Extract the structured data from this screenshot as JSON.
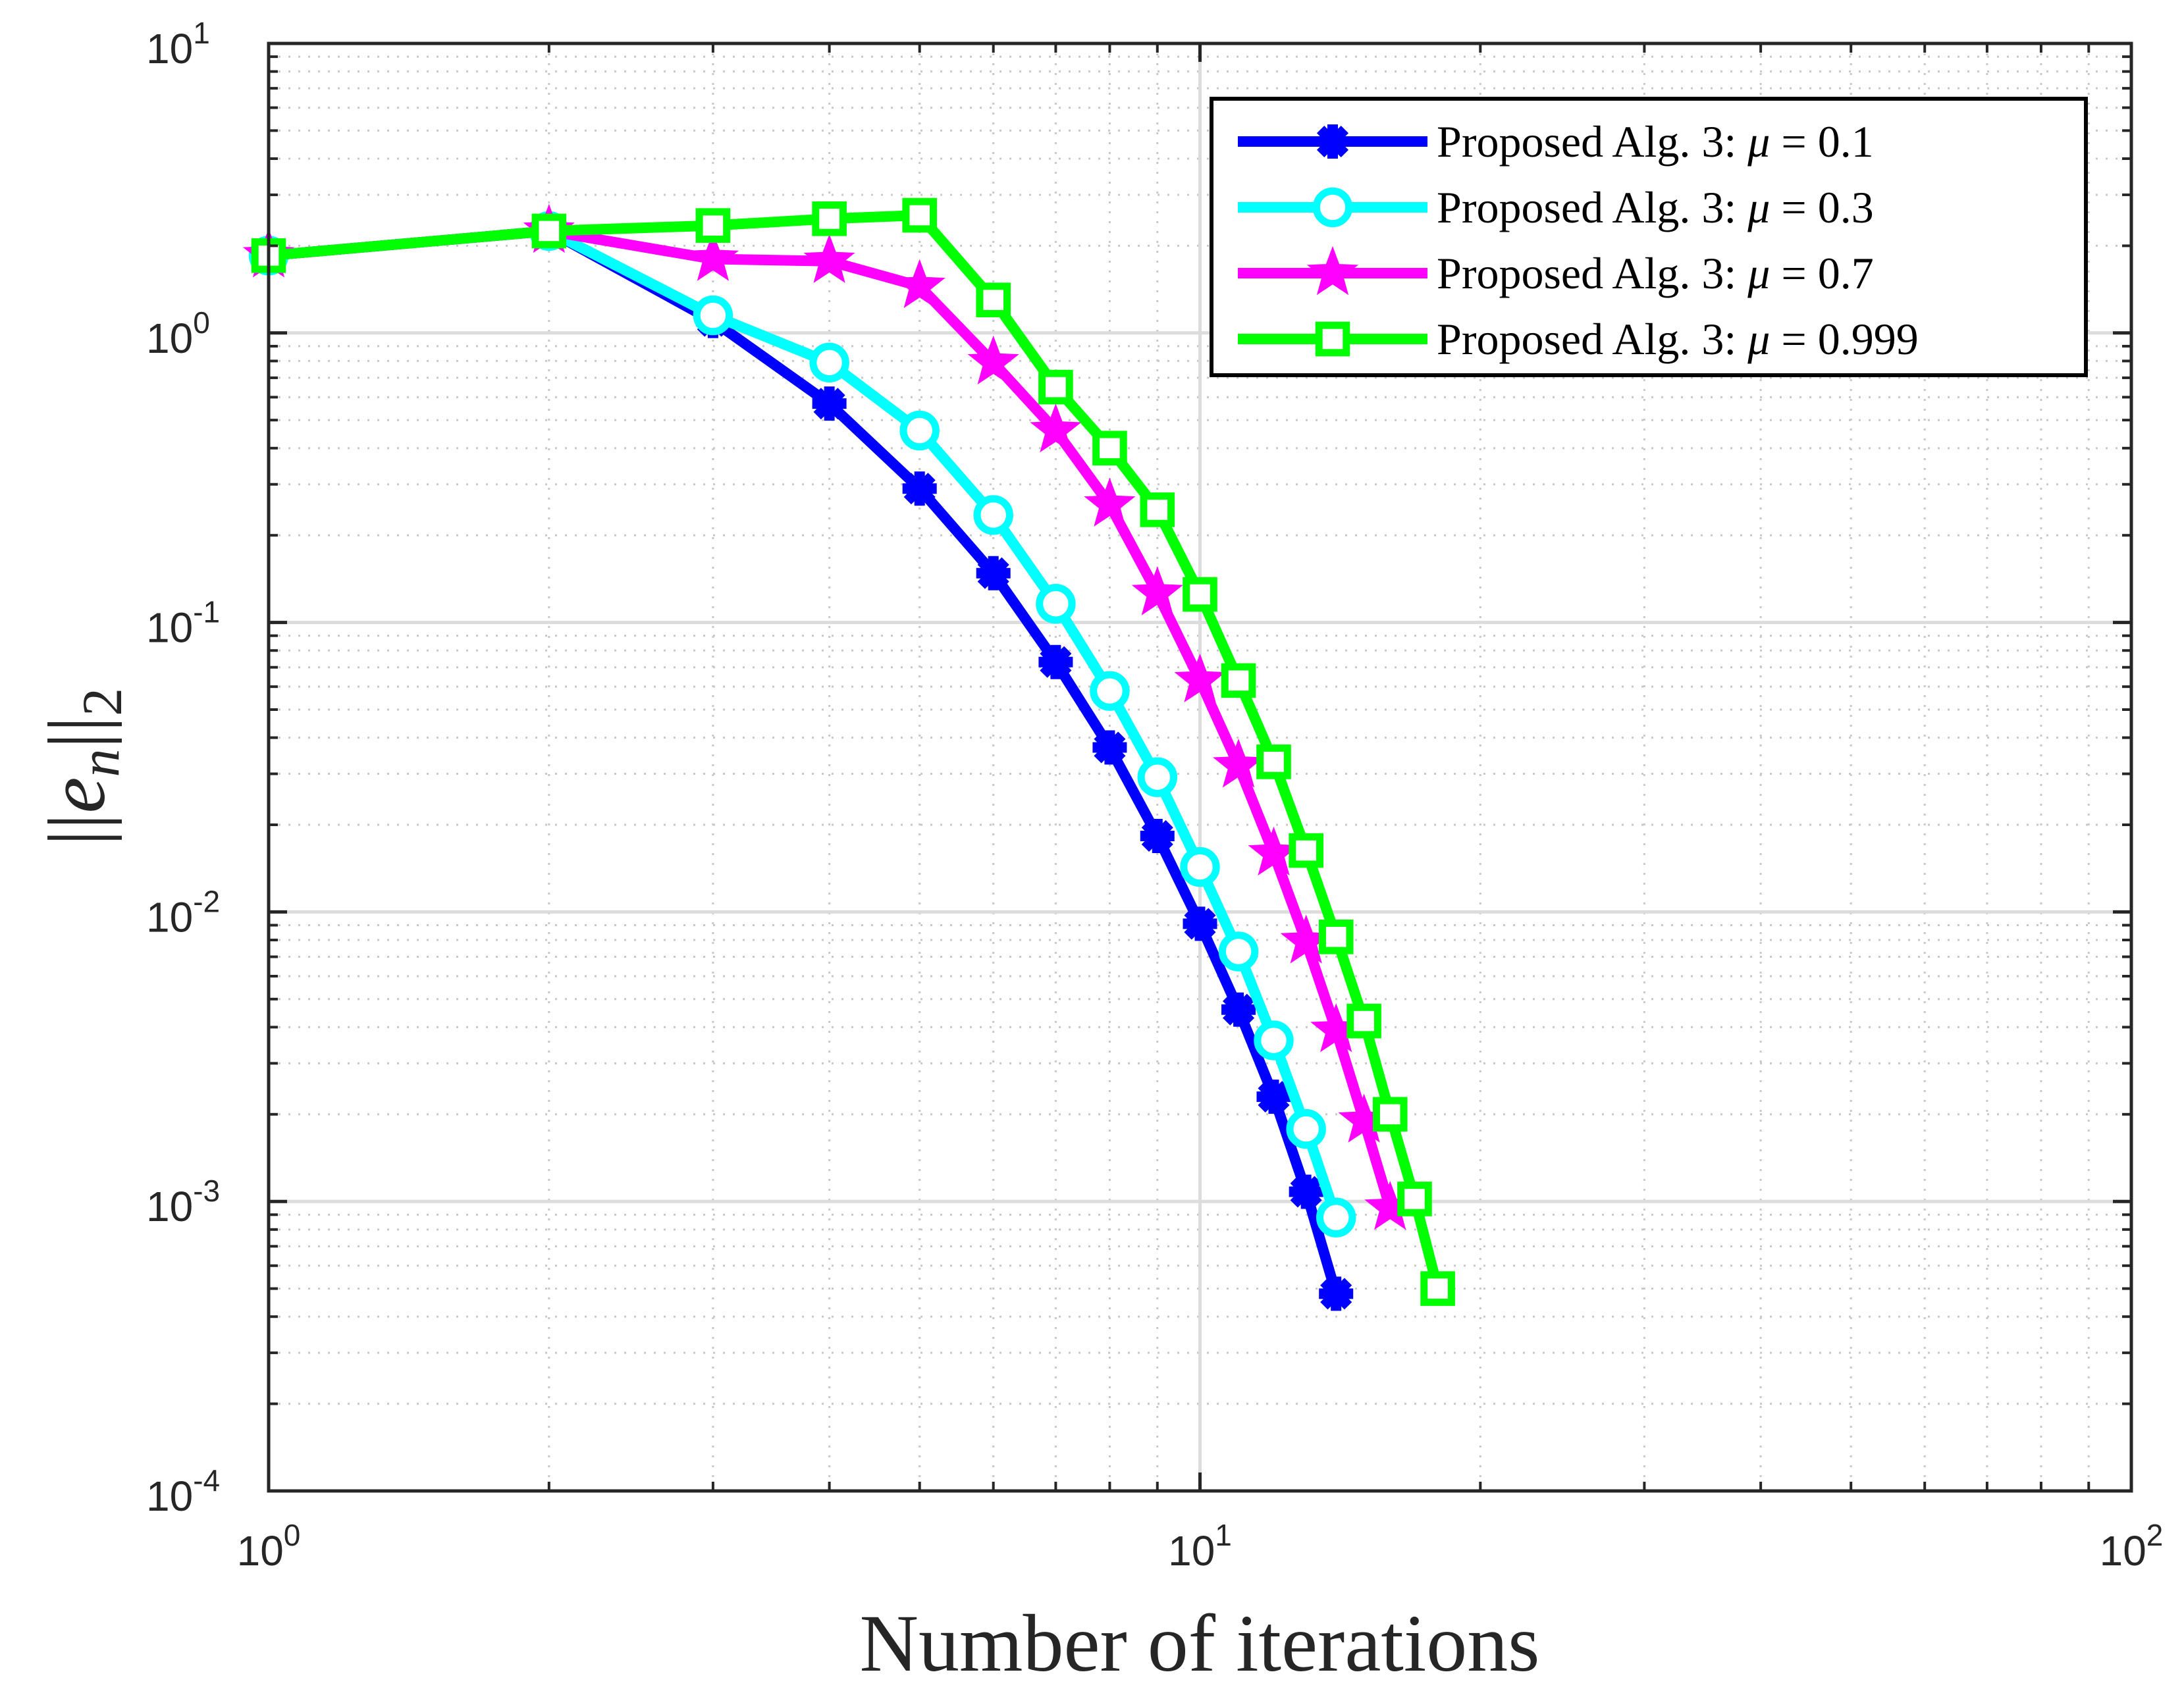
{
  "chart_data": {
    "type": "line",
    "xscale": "log",
    "yscale": "log",
    "xlabel": "Number of iterations",
    "ylabel": "||e_n||_2",
    "ylabel_parts": {
      "bars_left": "||",
      "var": "e",
      "sub": "n",
      "bars_right": "||",
      "norm": "2"
    },
    "xlim": [
      1,
      100
    ],
    "ylim": [
      0.0001,
      10
    ],
    "xticks": [
      {
        "value": 1,
        "base": "10",
        "exp": "0"
      },
      {
        "value": 10,
        "base": "10",
        "exp": "1"
      },
      {
        "value": 100,
        "base": "10",
        "exp": "2"
      }
    ],
    "yticks": [
      {
        "value": 0.0001,
        "base": "10",
        "exp": "-4"
      },
      {
        "value": 0.001,
        "base": "10",
        "exp": "-3"
      },
      {
        "value": 0.01,
        "base": "10",
        "exp": "-2"
      },
      {
        "value": 0.1,
        "base": "10",
        "exp": "-1"
      },
      {
        "value": 1,
        "base": "10",
        "exp": "0"
      },
      {
        "value": 10,
        "base": "10",
        "exp": "1"
      }
    ],
    "grid": true,
    "minor_grid": true,
    "legend_position": "top-right",
    "series": [
      {
        "name": "Proposed Alg. 3: μ = 0.1",
        "legend_prefix": "Proposed Alg. 3: ",
        "legend_param": "μ",
        "legend_value": " = 0.1",
        "color": "#0000ff",
        "marker": "asterisk",
        "x": [
          1,
          2,
          3,
          4,
          5,
          6,
          7,
          8,
          9,
          10,
          11,
          12,
          13,
          14
        ],
        "y": [
          1.85,
          2.25,
          1.1,
          0.57,
          0.29,
          0.148,
          0.073,
          0.037,
          0.0183,
          0.0091,
          0.0046,
          0.0023,
          0.00108,
          0.00048
        ]
      },
      {
        "name": "Proposed Alg. 3: μ = 0.3",
        "legend_prefix": "Proposed Alg. 3: ",
        "legend_param": "μ",
        "legend_value": " = 0.3",
        "color": "#00ffff",
        "marker": "circle",
        "x": [
          1,
          2,
          3,
          4,
          5,
          6,
          7,
          8,
          9,
          10,
          11,
          12,
          13,
          14
        ],
        "y": [
          1.85,
          2.25,
          1.15,
          0.79,
          0.46,
          0.235,
          0.116,
          0.058,
          0.0292,
          0.0143,
          0.0073,
          0.0036,
          0.00178,
          0.00088
        ]
      },
      {
        "name": "Proposed Alg. 3: μ = 0.7",
        "legend_prefix": "Proposed Alg. 3: ",
        "legend_param": "μ",
        "legend_value": " = 0.7",
        "color": "#ff00ff",
        "marker": "star",
        "x": [
          1,
          2,
          3,
          4,
          5,
          6,
          7,
          8,
          9,
          10,
          11,
          12,
          13,
          14,
          15,
          16
        ],
        "y": [
          1.85,
          2.25,
          1.8,
          1.77,
          1.45,
          0.79,
          0.46,
          0.255,
          0.126,
          0.063,
          0.032,
          0.0159,
          0.0079,
          0.0039,
          0.0019,
          0.00095
        ]
      },
      {
        "name": "Proposed Alg. 3: μ = 0.999",
        "legend_prefix": "Proposed Alg. 3: ",
        "legend_param": "μ",
        "legend_value": " = 0.999",
        "color": "#00ff00",
        "marker": "square",
        "x": [
          1,
          2,
          3,
          4,
          5,
          6,
          7,
          8,
          9,
          10,
          11,
          12,
          13,
          14,
          15,
          16,
          17,
          18
        ],
        "y": [
          1.85,
          2.25,
          2.35,
          2.48,
          2.55,
          1.3,
          0.65,
          0.4,
          0.245,
          0.125,
          0.063,
          0.033,
          0.0163,
          0.0082,
          0.0042,
          0.002,
          0.00102,
          0.0005
        ]
      }
    ]
  }
}
